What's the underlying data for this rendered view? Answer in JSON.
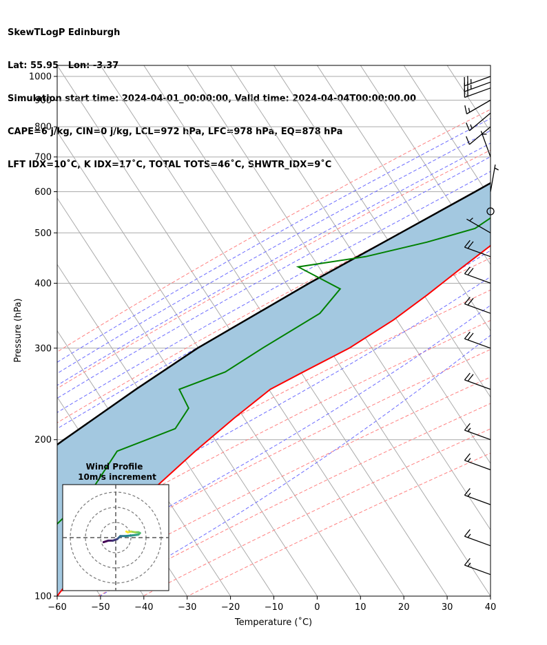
{
  "header": {
    "line1": "SkewTLogP Edinburgh",
    "line2": "Lat: 55.95   Lon: -3.37",
    "line3": "Simulation start time: 2024-04-01_00:00:00, Valid time: 2024-04-04T00:00:00.00",
    "line4": "CAPE=6 j/kg, CIN=0 j/kg, LCL=972 hPa, LFC=978 hPa, EQ=878 hPa",
    "line5": "LFT IDX=10˚C, K IDX=17˚C, TOTAL TOTS=46˚C, SHWTR_IDX=9˚C"
  },
  "colors": {
    "temperature": "#ff0000",
    "dewpoint": "#008000",
    "parcel": "#000000",
    "cape_fill": "#a3c8e0",
    "dry_adiabat": "#ff7f7f",
    "moist_adiabat": "#6a6aff",
    "isotherm": "#aaaaaa",
    "mixing_ratio": "#9933cc"
  },
  "chart_data": {
    "type": "skewt",
    "xlabel": "Temperature (˚C)",
    "ylabel": "Pressure (hPa)",
    "xlim": [
      -60,
      40
    ],
    "ylim": [
      1050,
      100
    ],
    "y_scale": "log",
    "x_ticks": [
      -60,
      -50,
      -40,
      -30,
      -20,
      -10,
      0,
      10,
      20,
      30,
      40
    ],
    "y_ticks": [
      1000,
      900,
      800,
      700,
      600,
      500,
      400,
      300,
      200,
      100
    ],
    "temperature": [
      {
        "p": 990,
        "t": 4.5
      },
      {
        "p": 950,
        "t": 2.5
      },
      {
        "p": 900,
        "t": 1
      },
      {
        "p": 870,
        "t": 0.5
      },
      {
        "p": 850,
        "t": 1.5
      },
      {
        "p": 800,
        "t": 2
      },
      {
        "p": 750,
        "t": 0
      },
      {
        "p": 700,
        "t": -2
      },
      {
        "p": 600,
        "t": -6
      },
      {
        "p": 520,
        "t": -10
      },
      {
        "p": 470,
        "t": -13
      },
      {
        "p": 430,
        "t": -16
      },
      {
        "p": 380,
        "t": -20
      },
      {
        "p": 340,
        "t": -24
      },
      {
        "p": 300,
        "t": -30
      },
      {
        "p": 270,
        "t": -37
      },
      {
        "p": 250,
        "t": -42
      },
      {
        "p": 220,
        "t": -46
      },
      {
        "p": 190,
        "t": -50
      },
      {
        "p": 160,
        "t": -54
      },
      {
        "p": 140,
        "t": -57
      },
      {
        "p": 120,
        "t": -59
      },
      {
        "p": 100,
        "t": -60
      }
    ],
    "dewpoint": [
      {
        "p": 990,
        "t": 3.5
      },
      {
        "p": 950,
        "t": 2
      },
      {
        "p": 900,
        "t": 0.5
      },
      {
        "p": 850,
        "t": 0
      },
      {
        "p": 800,
        "t": -1
      },
      {
        "p": 750,
        "t": -2
      },
      {
        "p": 700,
        "t": -4
      },
      {
        "p": 600,
        "t": -12
      },
      {
        "p": 510,
        "t": -19
      },
      {
        "p": 480,
        "t": -28
      },
      {
        "p": 450,
        "t": -40
      },
      {
        "p": 430,
        "t": -54
      },
      {
        "p": 390,
        "t": -41
      },
      {
        "p": 350,
        "t": -42
      },
      {
        "p": 300,
        "t": -50
      },
      {
        "p": 270,
        "t": -55
      },
      {
        "p": 250,
        "t": -63
      },
      {
        "p": 230,
        "t": -58
      },
      {
        "p": 210,
        "t": -58
      },
      {
        "p": 190,
        "t": -68
      },
      {
        "p": 160,
        "t": -68
      },
      {
        "p": 130,
        "t": -72
      },
      {
        "p": 100,
        "t": -78
      }
    ],
    "parcel": [
      {
        "p": 990,
        "t": 4
      },
      {
        "p": 900,
        "t": -1.5
      },
      {
        "p": 850,
        "t": -4.5
      },
      {
        "p": 800,
        "t": -8
      },
      {
        "p": 700,
        "t": -15.5
      },
      {
        "p": 600,
        "t": -24.5
      },
      {
        "p": 500,
        "t": -35.5
      },
      {
        "p": 400,
        "t": -49
      },
      {
        "p": 300,
        "t": -65
      },
      {
        "p": 250,
        "t": -73
      },
      {
        "p": 200,
        "t": -82
      },
      {
        "p": 150,
        "t": -93
      },
      {
        "p": 120,
        "t": -100
      },
      {
        "p": 100,
        "t": -105
      }
    ],
    "wind_barbs": [
      {
        "p": 1000,
        "speed_kt": 25,
        "dir": 250
      },
      {
        "p": 975,
        "speed_kt": 25,
        "dir": 250
      },
      {
        "p": 950,
        "speed_kt": 20,
        "dir": 250
      },
      {
        "p": 900,
        "speed_kt": 15,
        "dir": 240
      },
      {
        "p": 850,
        "speed_kt": 15,
        "dir": 230
      },
      {
        "p": 800,
        "speed_kt": 10,
        "dir": 230
      },
      {
        "p": 700,
        "speed_kt": 5,
        "dir": 340
      },
      {
        "p": 600,
        "speed_kt": 5,
        "dir": 10
      },
      {
        "p": 550,
        "speed_kt": 0,
        "dir": 0
      },
      {
        "p": 500,
        "speed_kt": 5,
        "dir": 300
      },
      {
        "p": 450,
        "speed_kt": 20,
        "dir": 290
      },
      {
        "p": 400,
        "speed_kt": 20,
        "dir": 290
      },
      {
        "p": 350,
        "speed_kt": 20,
        "dir": 290
      },
      {
        "p": 300,
        "speed_kt": 20,
        "dir": 290
      },
      {
        "p": 250,
        "speed_kt": 20,
        "dir": 290
      },
      {
        "p": 200,
        "speed_kt": 15,
        "dir": 290
      },
      {
        "p": 175,
        "speed_kt": 15,
        "dir": 290
      },
      {
        "p": 150,
        "speed_kt": 15,
        "dir": 290
      },
      {
        "p": 125,
        "speed_kt": 15,
        "dir": 290
      },
      {
        "p": 110,
        "speed_kt": 15,
        "dir": 290
      }
    ],
    "hodograph": {
      "title": "Wind Profile",
      "subtitle": "10m/s increment",
      "rings": [
        10,
        20,
        30
      ],
      "range": 35,
      "points": [
        {
          "u": -8,
          "v": -3
        },
        {
          "u": -5,
          "v": -2
        },
        {
          "u": -2,
          "v": -2
        },
        {
          "u": 1,
          "v": -1
        },
        {
          "u": 2,
          "v": 0
        },
        {
          "u": 3,
          "v": 1
        },
        {
          "u": 6,
          "v": 1
        },
        {
          "u": 11,
          "v": 1.5
        },
        {
          "u": 15,
          "v": 2
        },
        {
          "u": 16,
          "v": 3
        },
        {
          "u": 15,
          "v": 3.5
        },
        {
          "u": 13,
          "v": 3.5
        },
        {
          "u": 10,
          "v": 4
        },
        {
          "u": 8,
          "v": 3.5
        },
        {
          "u": 7,
          "v": 4
        }
      ]
    }
  }
}
